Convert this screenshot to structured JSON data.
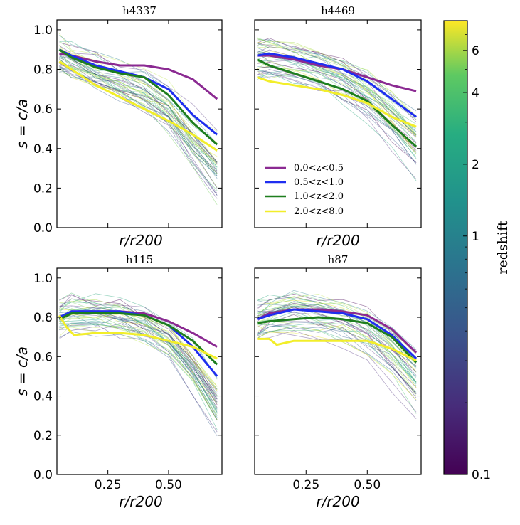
{
  "chart_data": [
    {
      "type": "line",
      "title": "h4337",
      "ylabel": "s = c/a",
      "xlabel": "r/r200",
      "xlim": [
        0.04,
        0.72
      ],
      "ylim": [
        0.0,
        1.05
      ],
      "yticks": [
        "0.0",
        "0.2",
        "0.4",
        "0.6",
        "0.8",
        "1.0"
      ],
      "xticks": [],
      "series": [
        {
          "name": "0.0<z<0.5",
          "color": "#8b2a92",
          "x": [
            0.05,
            0.1,
            0.2,
            0.3,
            0.4,
            0.5,
            0.6,
            0.7
          ],
          "y": [
            0.88,
            0.87,
            0.84,
            0.82,
            0.82,
            0.8,
            0.75,
            0.65
          ]
        },
        {
          "name": "0.5<z<1.0",
          "color": "#1f2ef0",
          "x": [
            0.05,
            0.1,
            0.2,
            0.3,
            0.4,
            0.5,
            0.6,
            0.7
          ],
          "y": [
            0.9,
            0.87,
            0.82,
            0.79,
            0.76,
            0.7,
            0.57,
            0.47
          ]
        },
        {
          "name": "1.0<z<2.0",
          "color": "#1e7e1e",
          "x": [
            0.05,
            0.1,
            0.2,
            0.3,
            0.4,
            0.5,
            0.6,
            0.7
          ],
          "y": [
            0.9,
            0.86,
            0.81,
            0.78,
            0.76,
            0.67,
            0.53,
            0.42
          ]
        },
        {
          "name": "2.0<z<8.0",
          "color": "#f2ee2a",
          "x": [
            0.05,
            0.1,
            0.2,
            0.3,
            0.4,
            0.5,
            0.6,
            0.7
          ],
          "y": [
            0.84,
            0.8,
            0.72,
            0.66,
            0.6,
            0.54,
            0.47,
            0.39
          ]
        }
      ],
      "background_curves": 40
    },
    {
      "type": "line",
      "title": "h4469",
      "ylabel": "",
      "xlabel": "r/r200",
      "xlim": [
        0.04,
        0.72
      ],
      "ylim": [
        0.0,
        1.05
      ],
      "yticks": [],
      "xticks": [],
      "series": [
        {
          "name": "0.0<z<0.5",
          "color": "#8b2a92",
          "x": [
            0.05,
            0.1,
            0.2,
            0.3,
            0.4,
            0.5,
            0.6,
            0.7
          ],
          "y": [
            0.87,
            0.87,
            0.85,
            0.82,
            0.8,
            0.76,
            0.72,
            0.69
          ]
        },
        {
          "name": "0.5<z<1.0",
          "color": "#1f2ef0",
          "x": [
            0.05,
            0.1,
            0.2,
            0.3,
            0.4,
            0.5,
            0.6,
            0.7
          ],
          "y": [
            0.87,
            0.88,
            0.86,
            0.83,
            0.8,
            0.74,
            0.65,
            0.56
          ]
        },
        {
          "name": "1.0<z<2.0",
          "color": "#1e7e1e",
          "x": [
            0.05,
            0.1,
            0.2,
            0.3,
            0.4,
            0.5,
            0.6,
            0.7
          ],
          "y": [
            0.85,
            0.82,
            0.78,
            0.74,
            0.7,
            0.64,
            0.52,
            0.41
          ]
        },
        {
          "name": "2.0<z<8.0",
          "color": "#f2ee2a",
          "x": [
            0.05,
            0.1,
            0.2,
            0.3,
            0.4,
            0.5,
            0.6,
            0.7
          ],
          "y": [
            0.76,
            0.74,
            0.72,
            0.7,
            0.67,
            0.63,
            0.56,
            0.51
          ]
        }
      ],
      "background_curves": 40
    },
    {
      "type": "line",
      "title": "h115",
      "ylabel": "s = c/a",
      "xlabel": "r/r200",
      "xlim": [
        0.04,
        0.72
      ],
      "ylim": [
        0.0,
        1.05
      ],
      "yticks": [
        "0.0",
        "0.2",
        "0.4",
        "0.6",
        "0.8",
        "1.0"
      ],
      "xticks": [
        "0.25",
        "0.50"
      ],
      "series": [
        {
          "name": "0.0<z<0.5",
          "color": "#8b2a92",
          "x": [
            0.05,
            0.1,
            0.2,
            0.3,
            0.4,
            0.5,
            0.6,
            0.7
          ],
          "y": [
            0.8,
            0.83,
            0.83,
            0.83,
            0.82,
            0.78,
            0.72,
            0.65
          ]
        },
        {
          "name": "0.5<z<1.0",
          "color": "#1f2ef0",
          "x": [
            0.05,
            0.1,
            0.2,
            0.3,
            0.4,
            0.5,
            0.6,
            0.7
          ],
          "y": [
            0.8,
            0.83,
            0.83,
            0.83,
            0.81,
            0.76,
            0.65,
            0.5
          ]
        },
        {
          "name": "1.0<z<2.0",
          "color": "#1e7e1e",
          "x": [
            0.05,
            0.1,
            0.2,
            0.3,
            0.4,
            0.5,
            0.6,
            0.7
          ],
          "y": [
            0.79,
            0.82,
            0.82,
            0.82,
            0.81,
            0.76,
            0.68,
            0.56
          ]
        },
        {
          "name": "2.0<z<8.0",
          "color": "#f2ee2a",
          "x": [
            0.05,
            0.08,
            0.11,
            0.2,
            0.3,
            0.4,
            0.5,
            0.6,
            0.7
          ],
          "y": [
            0.81,
            0.75,
            0.71,
            0.72,
            0.72,
            0.71,
            0.68,
            0.65,
            0.59
          ]
        }
      ],
      "background_curves": 40
    },
    {
      "type": "line",
      "title": "h87",
      "ylabel": "",
      "xlabel": "r/r200",
      "xlim": [
        0.04,
        0.72
      ],
      "ylim": [
        0.0,
        1.05
      ],
      "yticks": [],
      "xticks": [
        "0.25",
        "0.50"
      ],
      "series": [
        {
          "name": "0.0<z<0.5",
          "color": "#8b2a92",
          "x": [
            0.05,
            0.1,
            0.2,
            0.3,
            0.4,
            0.5,
            0.6,
            0.7
          ],
          "y": [
            0.79,
            0.82,
            0.84,
            0.84,
            0.83,
            0.81,
            0.74,
            0.62
          ]
        },
        {
          "name": "0.5<z<1.0",
          "color": "#1f2ef0",
          "x": [
            0.05,
            0.1,
            0.2,
            0.3,
            0.4,
            0.5,
            0.6,
            0.7
          ],
          "y": [
            0.79,
            0.81,
            0.84,
            0.83,
            0.82,
            0.79,
            0.71,
            0.59
          ]
        },
        {
          "name": "1.0<z<2.0",
          "color": "#1e7e1e",
          "x": [
            0.05,
            0.1,
            0.2,
            0.3,
            0.4,
            0.5,
            0.6,
            0.7
          ],
          "y": [
            0.77,
            0.78,
            0.79,
            0.8,
            0.79,
            0.77,
            0.7,
            0.57
          ]
        },
        {
          "name": "2.0<z<8.0",
          "color": "#f2ee2a",
          "x": [
            0.05,
            0.1,
            0.13,
            0.2,
            0.3,
            0.4,
            0.5,
            0.6,
            0.7
          ],
          "y": [
            0.69,
            0.69,
            0.66,
            0.68,
            0.68,
            0.68,
            0.68,
            0.64,
            0.58
          ]
        }
      ],
      "background_curves": 40
    }
  ],
  "legend": {
    "placement": "panel-2 lower-left",
    "entries": [
      {
        "label": "0.0<z<0.5",
        "color": "#8b2a92"
      },
      {
        "label": "0.5<z<1.0",
        "color": "#1f2ef0"
      },
      {
        "label": "1.0<z<2.0",
        "color": "#1e7e1e"
      },
      {
        "label": "2.0<z<8.0",
        "color": "#f2ee2a"
      }
    ]
  },
  "colorbar": {
    "label": "redshift",
    "scale": "log",
    "range": [
      0.1,
      8.0
    ],
    "ticks": [
      {
        "value": 0.1,
        "label": "0.1"
      },
      {
        "value": 1,
        "label": "1"
      },
      {
        "value": 2,
        "label": "2"
      },
      {
        "value": 4,
        "label": "4"
      },
      {
        "value": 6,
        "label": "6"
      }
    ],
    "colormap": [
      "#440154",
      "#3b528b",
      "#21918c",
      "#5ec962",
      "#fde725"
    ]
  }
}
